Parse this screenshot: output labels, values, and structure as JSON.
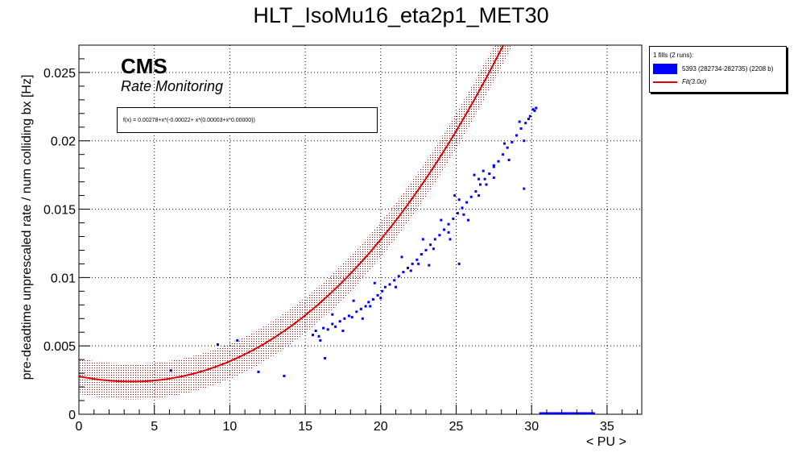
{
  "chart_data": {
    "type": "scatter",
    "title": "HLT_IsoMu16_eta2p1_MET30",
    "xlabel": "< PU >",
    "ylabel": "pre-deadtime unprescaled rate / num colliding bx [Hz]",
    "xlim": [
      0,
      37.3
    ],
    "ylim": [
      0,
      0.027
    ],
    "x_ticks": [
      0,
      5,
      10,
      15,
      20,
      25,
      30,
      35
    ],
    "x_tick_labels": [
      "0",
      "5",
      "10",
      "15",
      "20",
      "25",
      "30",
      "35"
    ],
    "y_ticks": [
      0,
      0.005,
      0.01,
      0.015,
      0.02,
      0.025
    ],
    "y_tick_labels": [
      "0",
      "0.005",
      "0.01",
      "0.015",
      "0.02",
      "0.025"
    ],
    "grid": true,
    "legend_position": "top-right (outside plot)",
    "legend_header": "1 fills (2 runs):",
    "legend": [
      {
        "label": "5393 (282734-282735) (2208 b)",
        "color": "#0000ff",
        "kind": "fill"
      },
      {
        "label": "Fit(3.0σ)",
        "color": "#dd0000",
        "kind": "line"
      }
    ],
    "annotation_main": "CMS",
    "annotation_sub": "Rate Monitoring",
    "fit_formula": "f(x) = 0.00278+x*(-0.00022+ x*(0.00003+x*0.00000))",
    "fit": {
      "coefficients": [
        0.00278,
        -0.00022,
        3e-05,
        3e-07
      ],
      "band_halfwidth": 0.0013,
      "x_range": [
        0,
        34.2
      ],
      "color": "#dd0000",
      "band_color": "#aa0000"
    },
    "series": [
      {
        "name": "5393 (282734-282735) (2208 b)",
        "color": "#0000ff",
        "points": [
          [
            15.5,
            0.0058
          ],
          [
            15.7,
            0.0061
          ],
          [
            15.9,
            0.0057
          ],
          [
            16.2,
            0.0063
          ],
          [
            16.5,
            0.0062
          ],
          [
            16.8,
            0.0066
          ],
          [
            17.0,
            0.0064
          ],
          [
            17.3,
            0.0068
          ],
          [
            17.6,
            0.007
          ],
          [
            17.9,
            0.0072
          ],
          [
            18.1,
            0.0071
          ],
          [
            18.4,
            0.0075
          ],
          [
            18.7,
            0.0077
          ],
          [
            19.0,
            0.0079
          ],
          [
            19.2,
            0.0082
          ],
          [
            19.5,
            0.0084
          ],
          [
            19.8,
            0.0087
          ],
          [
            20.1,
            0.009
          ],
          [
            20.3,
            0.0093
          ],
          [
            20.6,
            0.0095
          ],
          [
            20.9,
            0.0098
          ],
          [
            21.2,
            0.0101
          ],
          [
            21.5,
            0.0104
          ],
          [
            21.8,
            0.0107
          ],
          [
            22.1,
            0.011
          ],
          [
            22.4,
            0.0113
          ],
          [
            22.7,
            0.0117
          ],
          [
            23.0,
            0.012
          ],
          [
            23.3,
            0.0124
          ],
          [
            23.6,
            0.0128
          ],
          [
            23.9,
            0.0131
          ],
          [
            24.2,
            0.0135
          ],
          [
            24.5,
            0.0139
          ],
          [
            24.8,
            0.0143
          ],
          [
            25.1,
            0.0147
          ],
          [
            25.4,
            0.0151
          ],
          [
            25.7,
            0.0155
          ],
          [
            26.0,
            0.0159
          ],
          [
            26.3,
            0.0163
          ],
          [
            26.6,
            0.0168
          ],
          [
            26.9,
            0.0172
          ],
          [
            27.2,
            0.0176
          ],
          [
            27.5,
            0.0181
          ],
          [
            27.8,
            0.0185
          ],
          [
            28.1,
            0.019
          ],
          [
            28.4,
            0.0195
          ],
          [
            28.7,
            0.0199
          ],
          [
            29.0,
            0.0204
          ],
          [
            29.3,
            0.0209
          ],
          [
            29.6,
            0.0213
          ],
          [
            29.9,
            0.0218
          ],
          [
            30.2,
            0.0222
          ],
          [
            30.3,
            0.0224
          ],
          [
            16.0,
            0.0054
          ],
          [
            17.5,
            0.0061
          ],
          [
            18.8,
            0.007
          ],
          [
            20.0,
            0.0085
          ],
          [
            21.0,
            0.0093
          ],
          [
            22.0,
            0.0105
          ],
          [
            23.5,
            0.0121
          ],
          [
            24.5,
            0.0133
          ],
          [
            25.5,
            0.0146
          ],
          [
            26.5,
            0.016
          ],
          [
            27.5,
            0.0173
          ],
          [
            28.5,
            0.0186
          ],
          [
            29.5,
            0.02
          ],
          [
            16.8,
            0.0073
          ],
          [
            18.2,
            0.0083
          ],
          [
            19.6,
            0.0096
          ],
          [
            21.4,
            0.0115
          ],
          [
            22.8,
            0.0128
          ],
          [
            24.0,
            0.0142
          ],
          [
            25.2,
            0.0157
          ],
          [
            26.8,
            0.0178
          ],
          [
            28.2,
            0.0198
          ],
          [
            29.2,
            0.0214
          ],
          [
            26.5,
            0.0172
          ],
          [
            25.8,
            0.0142
          ],
          [
            23.2,
            0.0109
          ],
          [
            27.5,
            0.0182
          ],
          [
            22.5,
            0.011
          ],
          [
            19.3,
            0.0079
          ],
          [
            24.6,
            0.0128
          ],
          [
            29.8,
            0.0216
          ],
          [
            27.0,
            0.0168
          ],
          [
            9.2,
            0.0051
          ],
          [
            10.5,
            0.0054
          ],
          [
            6.1,
            0.0032
          ],
          [
            11.9,
            0.0031
          ],
          [
            13.6,
            0.0028
          ],
          [
            16.3,
            0.0041
          ],
          [
            25.2,
            0.011
          ],
          [
            24.9,
            0.016
          ],
          [
            26.2,
            0.0175
          ],
          [
            29.5,
            0.0165
          ],
          [
            30.1,
            0.0223
          ]
        ]
      }
    ],
    "blue_segment": {
      "x": [
        30.5,
        34.2
      ],
      "y": 0.0
    }
  }
}
